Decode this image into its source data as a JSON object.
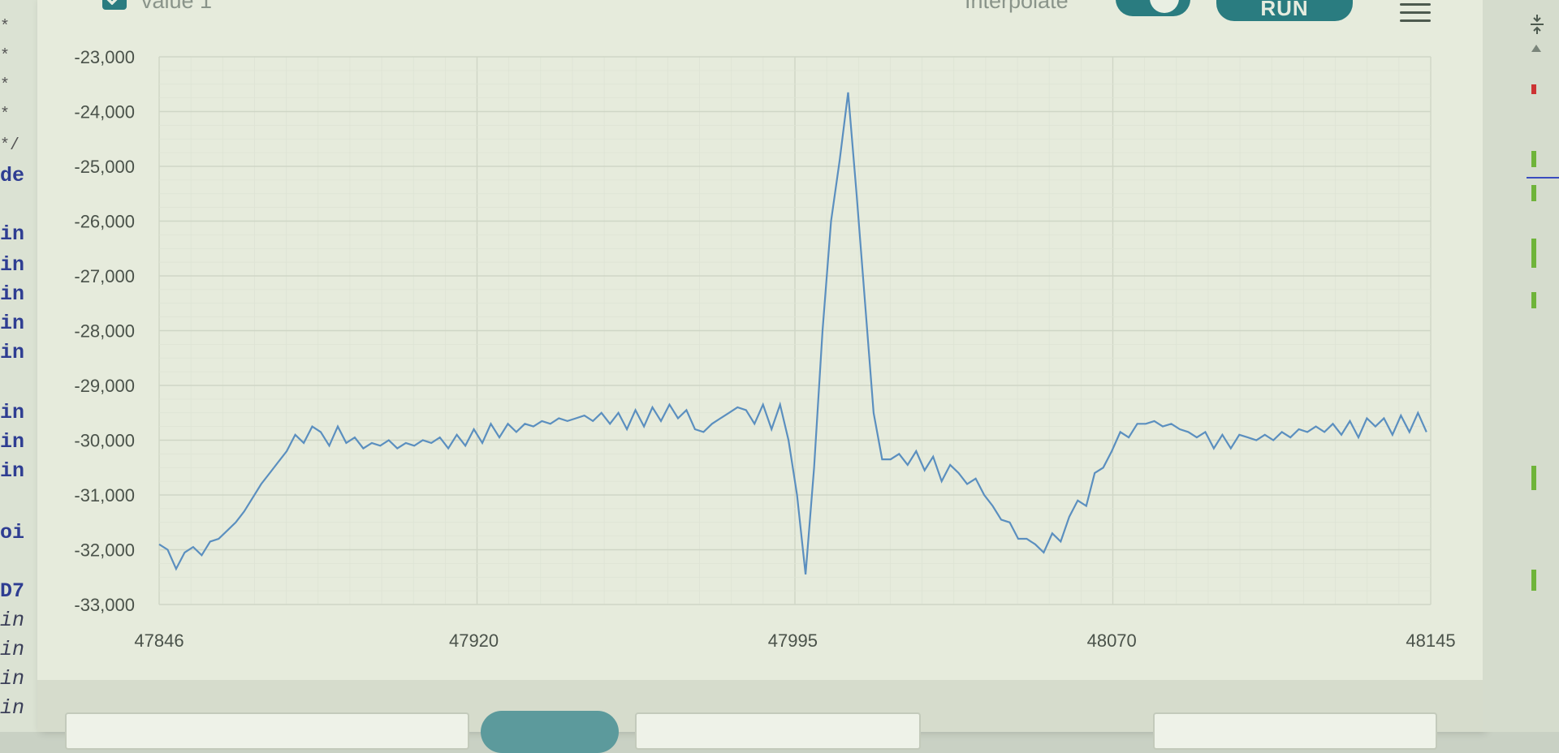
{
  "window": {
    "series_label": "value 1",
    "interpolate_label": "Interpolate",
    "interpolate_on": true,
    "run_button_label": "RUN"
  },
  "code_strip": {
    "lines": [
      {
        "text": "*",
        "style": "cm"
      },
      {
        "text": "*",
        "style": "cm"
      },
      {
        "text": "*",
        "style": "cm"
      },
      {
        "text": "*",
        "style": "cm"
      },
      {
        "text": "*/",
        "style": "cm"
      },
      {
        "text": "de",
        "style": "kw"
      },
      {
        "text": "in",
        "style": "kw"
      },
      {
        "text": "in",
        "style": "kw"
      },
      {
        "text": "in",
        "style": "kw"
      },
      {
        "text": "in",
        "style": "kw"
      },
      {
        "text": "in",
        "style": "kw"
      },
      {
        "text": "in",
        "style": "kw"
      },
      {
        "text": "in",
        "style": "kw"
      },
      {
        "text": "in",
        "style": "kw"
      },
      {
        "text": "oi",
        "style": "kw"
      },
      {
        "text": "D7",
        "style": "kw"
      },
      {
        "text": "in",
        "style": "it"
      },
      {
        "text": "in",
        "style": "it"
      },
      {
        "text": "in",
        "style": "it"
      },
      {
        "text": "in",
        "style": "it"
      }
    ]
  },
  "chart_data": {
    "type": "line",
    "title": "",
    "xlabel": "",
    "ylabel": "",
    "xlim": [
      47846,
      48145
    ],
    "ylim": [
      -33000,
      -23000
    ],
    "x_ticks": [
      47846,
      47920,
      47995,
      48070,
      48145
    ],
    "y_ticks": [
      -23000,
      -24000,
      -25000,
      -26000,
      -27000,
      -28000,
      -29000,
      -30000,
      -31000,
      -32000,
      -33000
    ],
    "y_tick_labels": [
      "-23,000",
      "-24,000",
      "-25,000",
      "-26,000",
      "-27,000",
      "-28,000",
      "-29,000",
      "-30,000",
      "-31,000",
      "-32,000",
      "-33,000"
    ],
    "x_tick_labels": [
      "47846",
      "47920",
      "47995",
      "48070",
      "48145"
    ],
    "grid": true,
    "line_color": "#5b8fbf",
    "series": [
      {
        "x": [
          47846,
          47848,
          47850,
          47852,
          47854,
          47856,
          47858,
          47860,
          47862,
          47864,
          47866,
          47868,
          47870,
          47872,
          47874,
          47876,
          47878,
          47880,
          47882,
          47884,
          47886,
          47888,
          47890,
          47892,
          47894,
          47896,
          47898,
          47900,
          47902,
          47904,
          47906,
          47908,
          47910,
          47912,
          47914,
          47916,
          47918,
          47920,
          47922,
          47924,
          47926,
          47928,
          47930,
          47932,
          47934,
          47936,
          47938,
          47940,
          47942,
          47944,
          47946,
          47948,
          47950,
          47952,
          47954,
          47956,
          47958,
          47960,
          47962,
          47964,
          47966,
          47968,
          47970,
          47972,
          47974,
          47976,
          47978,
          47980,
          47982,
          47984,
          47986,
          47988,
          47990,
          47992,
          47994,
          47996,
          47998,
          48000,
          48002,
          48004,
          48006,
          48008,
          48010,
          48012,
          48014,
          48016,
          48018,
          48020,
          48022,
          48024,
          48026,
          48028,
          48030,
          48032,
          48034,
          48036,
          48038,
          48040,
          48042,
          48044,
          48046,
          48048,
          48050,
          48052,
          48054,
          48056,
          48058,
          48060,
          48062,
          48064,
          48066,
          48068,
          48070,
          48072,
          48074,
          48076,
          48078,
          48080,
          48082,
          48084,
          48086,
          48088,
          48090,
          48092,
          48094,
          48096,
          48098,
          48100,
          48102,
          48104,
          48106,
          48108,
          48110,
          48112,
          48114,
          48116,
          48118,
          48120,
          48122,
          48124,
          48126,
          48128,
          48130,
          48132,
          48134,
          48136,
          48138,
          48140,
          48142,
          48144
        ],
        "values": [
          -31900,
          -32000,
          -32350,
          -32050,
          -31950,
          -32100,
          -31850,
          -31800,
          -31650,
          -31500,
          -31300,
          -31050,
          -30800,
          -30600,
          -30400,
          -30200,
          -29900,
          -30050,
          -29750,
          -29850,
          -30100,
          -29750,
          -30050,
          -29950,
          -30150,
          -30050,
          -30100,
          -30000,
          -30150,
          -30050,
          -30100,
          -30000,
          -30050,
          -29950,
          -30150,
          -29900,
          -30100,
          -29800,
          -30050,
          -29700,
          -29950,
          -29700,
          -29850,
          -29700,
          -29750,
          -29650,
          -29700,
          -29600,
          -29650,
          -29600,
          -29550,
          -29650,
          -29500,
          -29700,
          -29500,
          -29800,
          -29450,
          -29750,
          -29400,
          -29650,
          -29350,
          -29600,
          -29450,
          -29800,
          -29850,
          -29700,
          -29600,
          -29500,
          -29400,
          -29450,
          -29700,
          -29350,
          -29800,
          -29350,
          -30000,
          -31000,
          -32450,
          -30500,
          -28000,
          -26000,
          -24900,
          -23650,
          -25500,
          -27500,
          -29500,
          -30350,
          -30350,
          -30250,
          -30450,
          -30200,
          -30550,
          -30300,
          -30750,
          -30450,
          -30600,
          -30800,
          -30700,
          -31000,
          -31200,
          -31450,
          -31500,
          -31800,
          -31800,
          -31900,
          -32050,
          -31700,
          -31850,
          -31400,
          -31100,
          -31200,
          -30600,
          -30500,
          -30200,
          -29850,
          -29950,
          -29700,
          -29700,
          -29650,
          -29750,
          -29700,
          -29800,
          -29850,
          -29950,
          -29850,
          -30150,
          -29900,
          -30150,
          -29900,
          -29950,
          -30000,
          -29900,
          -30000,
          -29850,
          -29950,
          -29800,
          -29850,
          -29750,
          -29850,
          -29700,
          -29900,
          -29650,
          -29950,
          -29600,
          -29750,
          -29600,
          -29900,
          -29550,
          -29850,
          -29500,
          -29850
        ]
      }
    ]
  },
  "inputs": {
    "message_value": "",
    "line_ending_value": "",
    "baud_value": ""
  }
}
